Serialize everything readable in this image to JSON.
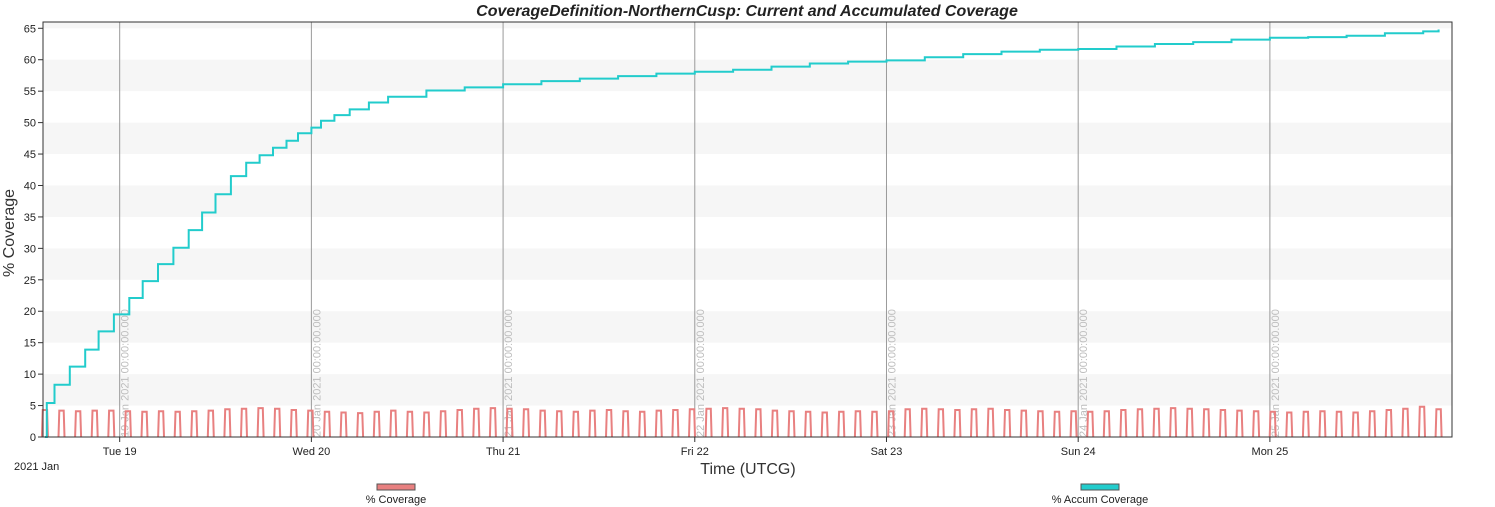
{
  "chart_data": {
    "type": "line",
    "title": "CoverageDefinition-NorthernCusp:  Current and Accumulated Coverage",
    "xlabel": "Time (UTCG)",
    "ylabel": "% Coverage",
    "ylim": [
      0,
      66
    ],
    "yticks": [
      "0",
      "5",
      "10",
      "15",
      "20",
      "25",
      "30",
      "35",
      "40",
      "45",
      "50",
      "55",
      "60",
      "65"
    ],
    "xlim_days": [
      18.6,
      25.95
    ],
    "year_label": "2021 Jan",
    "day_ticks": [
      {
        "label": "Tue 19",
        "day": 19,
        "stamp": "19 Jan 2021 00:00:00.000"
      },
      {
        "label": "Wed 20",
        "day": 20,
        "stamp": "20 Jan 2021 00:00:00.000"
      },
      {
        "label": "Thu 21",
        "day": 21,
        "stamp": "21 Jan 2021 00:00:00.000"
      },
      {
        "label": "Fri 22",
        "day": 22,
        "stamp": "22 Jan 2021 00:00:00.000"
      },
      {
        "label": "Sat 23",
        "day": 23,
        "stamp": "23 Jan 2021 00:00:00.000"
      },
      {
        "label": "Sun 24",
        "day": 24,
        "stamp": "24 Jan 2021 00:00:00.000"
      },
      {
        "label": "Mon 25",
        "day": 25,
        "stamp": "25 Jan 2021 00:00:00.000"
      }
    ],
    "grid": true,
    "legend_position": "bottom",
    "series": [
      {
        "name": "% Coverage",
        "color": "#e88080",
        "style": "periodic spikes",
        "spike_count": 85,
        "spike_start_day": 18.61,
        "spike_end_day": 25.88,
        "peaks": [
          4.3,
          4.2,
          4.1,
          4.2,
          4.2,
          4.1,
          4.0,
          4.1,
          4.0,
          4.1,
          4.2,
          4.4,
          4.5,
          4.6,
          4.5,
          4.3,
          4.2,
          4.0,
          3.9,
          3.8,
          4.0,
          4.2,
          4.0,
          3.9,
          4.1,
          4.3,
          4.5,
          4.6,
          4.5,
          4.4,
          4.2,
          4.1,
          4.0,
          4.2,
          4.3,
          4.1,
          4.0,
          4.2,
          4.3,
          4.4,
          4.5,
          4.6,
          4.5,
          4.4,
          4.2,
          4.1,
          4.0,
          3.9,
          4.0,
          4.1,
          4.0,
          4.1,
          4.4,
          4.5,
          4.4,
          4.3,
          4.4,
          4.5,
          4.3,
          4.2,
          4.1,
          4.0,
          4.1,
          4.0,
          4.1,
          4.3,
          4.4,
          4.5,
          4.6,
          4.5,
          4.4,
          4.3,
          4.2,
          4.1,
          4.0,
          3.9,
          4.0,
          4.1,
          4.0,
          3.9,
          4.1,
          4.3,
          4.5,
          4.8,
          4.4
        ]
      },
      {
        "name": "% Accum Coverage",
        "color": "#22cccc",
        "style": "step",
        "x": [
          18.61,
          18.62,
          18.66,
          18.74,
          18.82,
          18.89,
          18.97,
          19.05,
          19.12,
          19.2,
          19.28,
          19.36,
          19.43,
          19.5,
          19.58,
          19.66,
          19.73,
          19.8,
          19.87,
          19.93,
          20.0,
          20.05,
          20.12,
          20.2,
          20.3,
          20.4,
          20.6,
          20.8,
          21.0,
          21.2,
          21.4,
          21.6,
          21.8,
          22.0,
          22.2,
          22.4,
          22.6,
          22.8,
          23.0,
          23.2,
          23.4,
          23.6,
          23.8,
          24.0,
          24.2,
          24.4,
          24.6,
          24.8,
          25.0,
          25.2,
          25.4,
          25.6,
          25.8,
          25.88
        ],
        "y": [
          0,
          5.4,
          8.3,
          11.2,
          13.9,
          16.8,
          19.5,
          22.1,
          24.8,
          27.5,
          30.1,
          32.9,
          35.7,
          38.6,
          41.5,
          43.6,
          44.8,
          46.0,
          47.1,
          48.3,
          49.2,
          50.3,
          51.2,
          52.1,
          53.2,
          54.1,
          55.1,
          55.6,
          56.1,
          56.6,
          57.0,
          57.4,
          57.8,
          58.1,
          58.4,
          58.9,
          59.4,
          59.7,
          59.9,
          60.4,
          60.9,
          61.3,
          61.6,
          61.7,
          62.1,
          62.5,
          62.8,
          63.2,
          63.5,
          63.6,
          63.8,
          64.2,
          64.5,
          64.8
        ]
      }
    ]
  }
}
